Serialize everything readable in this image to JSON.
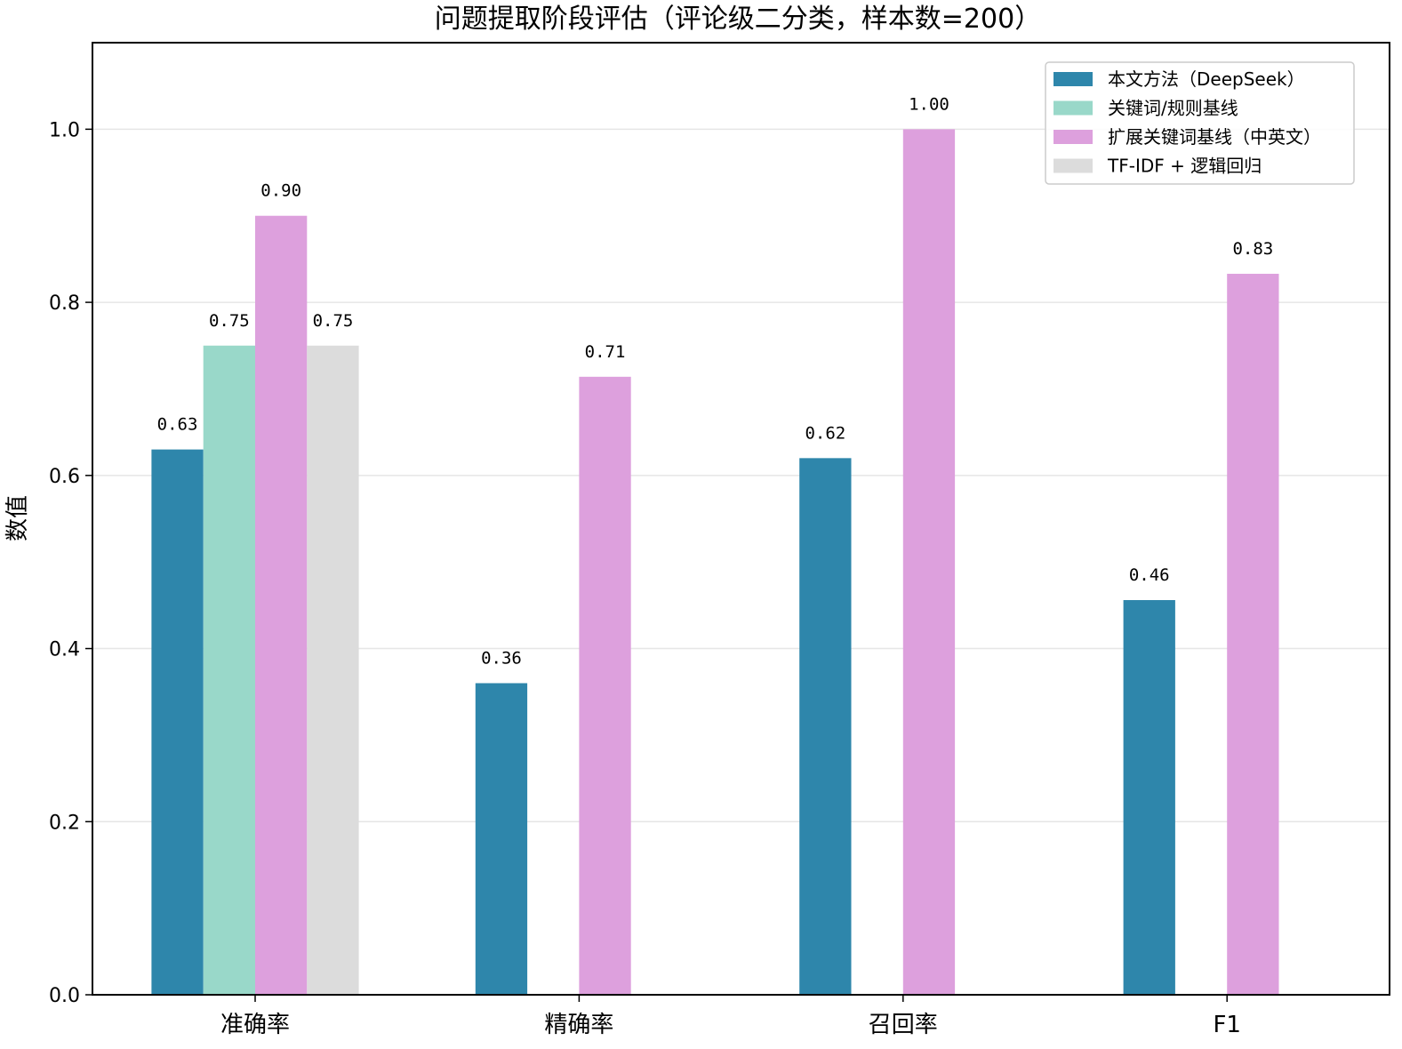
{
  "chart_data": {
    "type": "bar",
    "title": "问题提取阶段评估（评论级二分类，样本数=200）",
    "xlabel": "",
    "ylabel": "数值",
    "ylim": [
      0,
      1.1
    ],
    "yticks": [
      0.0,
      0.2,
      0.4,
      0.6,
      0.8,
      1.0
    ],
    "ytick_labels": [
      "0.0",
      "0.2",
      "0.4",
      "0.6",
      "0.8",
      "1.0"
    ],
    "grid": "horizontal",
    "legend_position": "top-right",
    "categories": [
      "准确率",
      "精确率",
      "召回率",
      "F1"
    ],
    "series": [
      {
        "name": "本文方法（DeepSeek）",
        "color": "#2E86AB",
        "values": [
          0.63,
          0.36,
          0.62,
          0.456
        ],
        "labels": [
          "0.63",
          "0.36",
          "0.62",
          "0.46"
        ]
      },
      {
        "name": "关键词/规则基线",
        "color": "#99D8C9",
        "values": [
          0.75,
          null,
          null,
          null
        ],
        "labels": [
          "0.75",
          null,
          null,
          null
        ]
      },
      {
        "name": "扩展关键词基线（中英文）",
        "color": "#DDA0DD",
        "values": [
          0.9,
          0.714,
          1.0,
          0.833
        ],
        "labels": [
          "0.90",
          "0.71",
          "1.00",
          "0.83"
        ]
      },
      {
        "name": "TF-IDF + 逻辑回归",
        "color": "#DCDCDC",
        "values": [
          0.75,
          null,
          null,
          null
        ],
        "labels": [
          "0.75",
          null,
          null,
          null
        ]
      }
    ]
  }
}
